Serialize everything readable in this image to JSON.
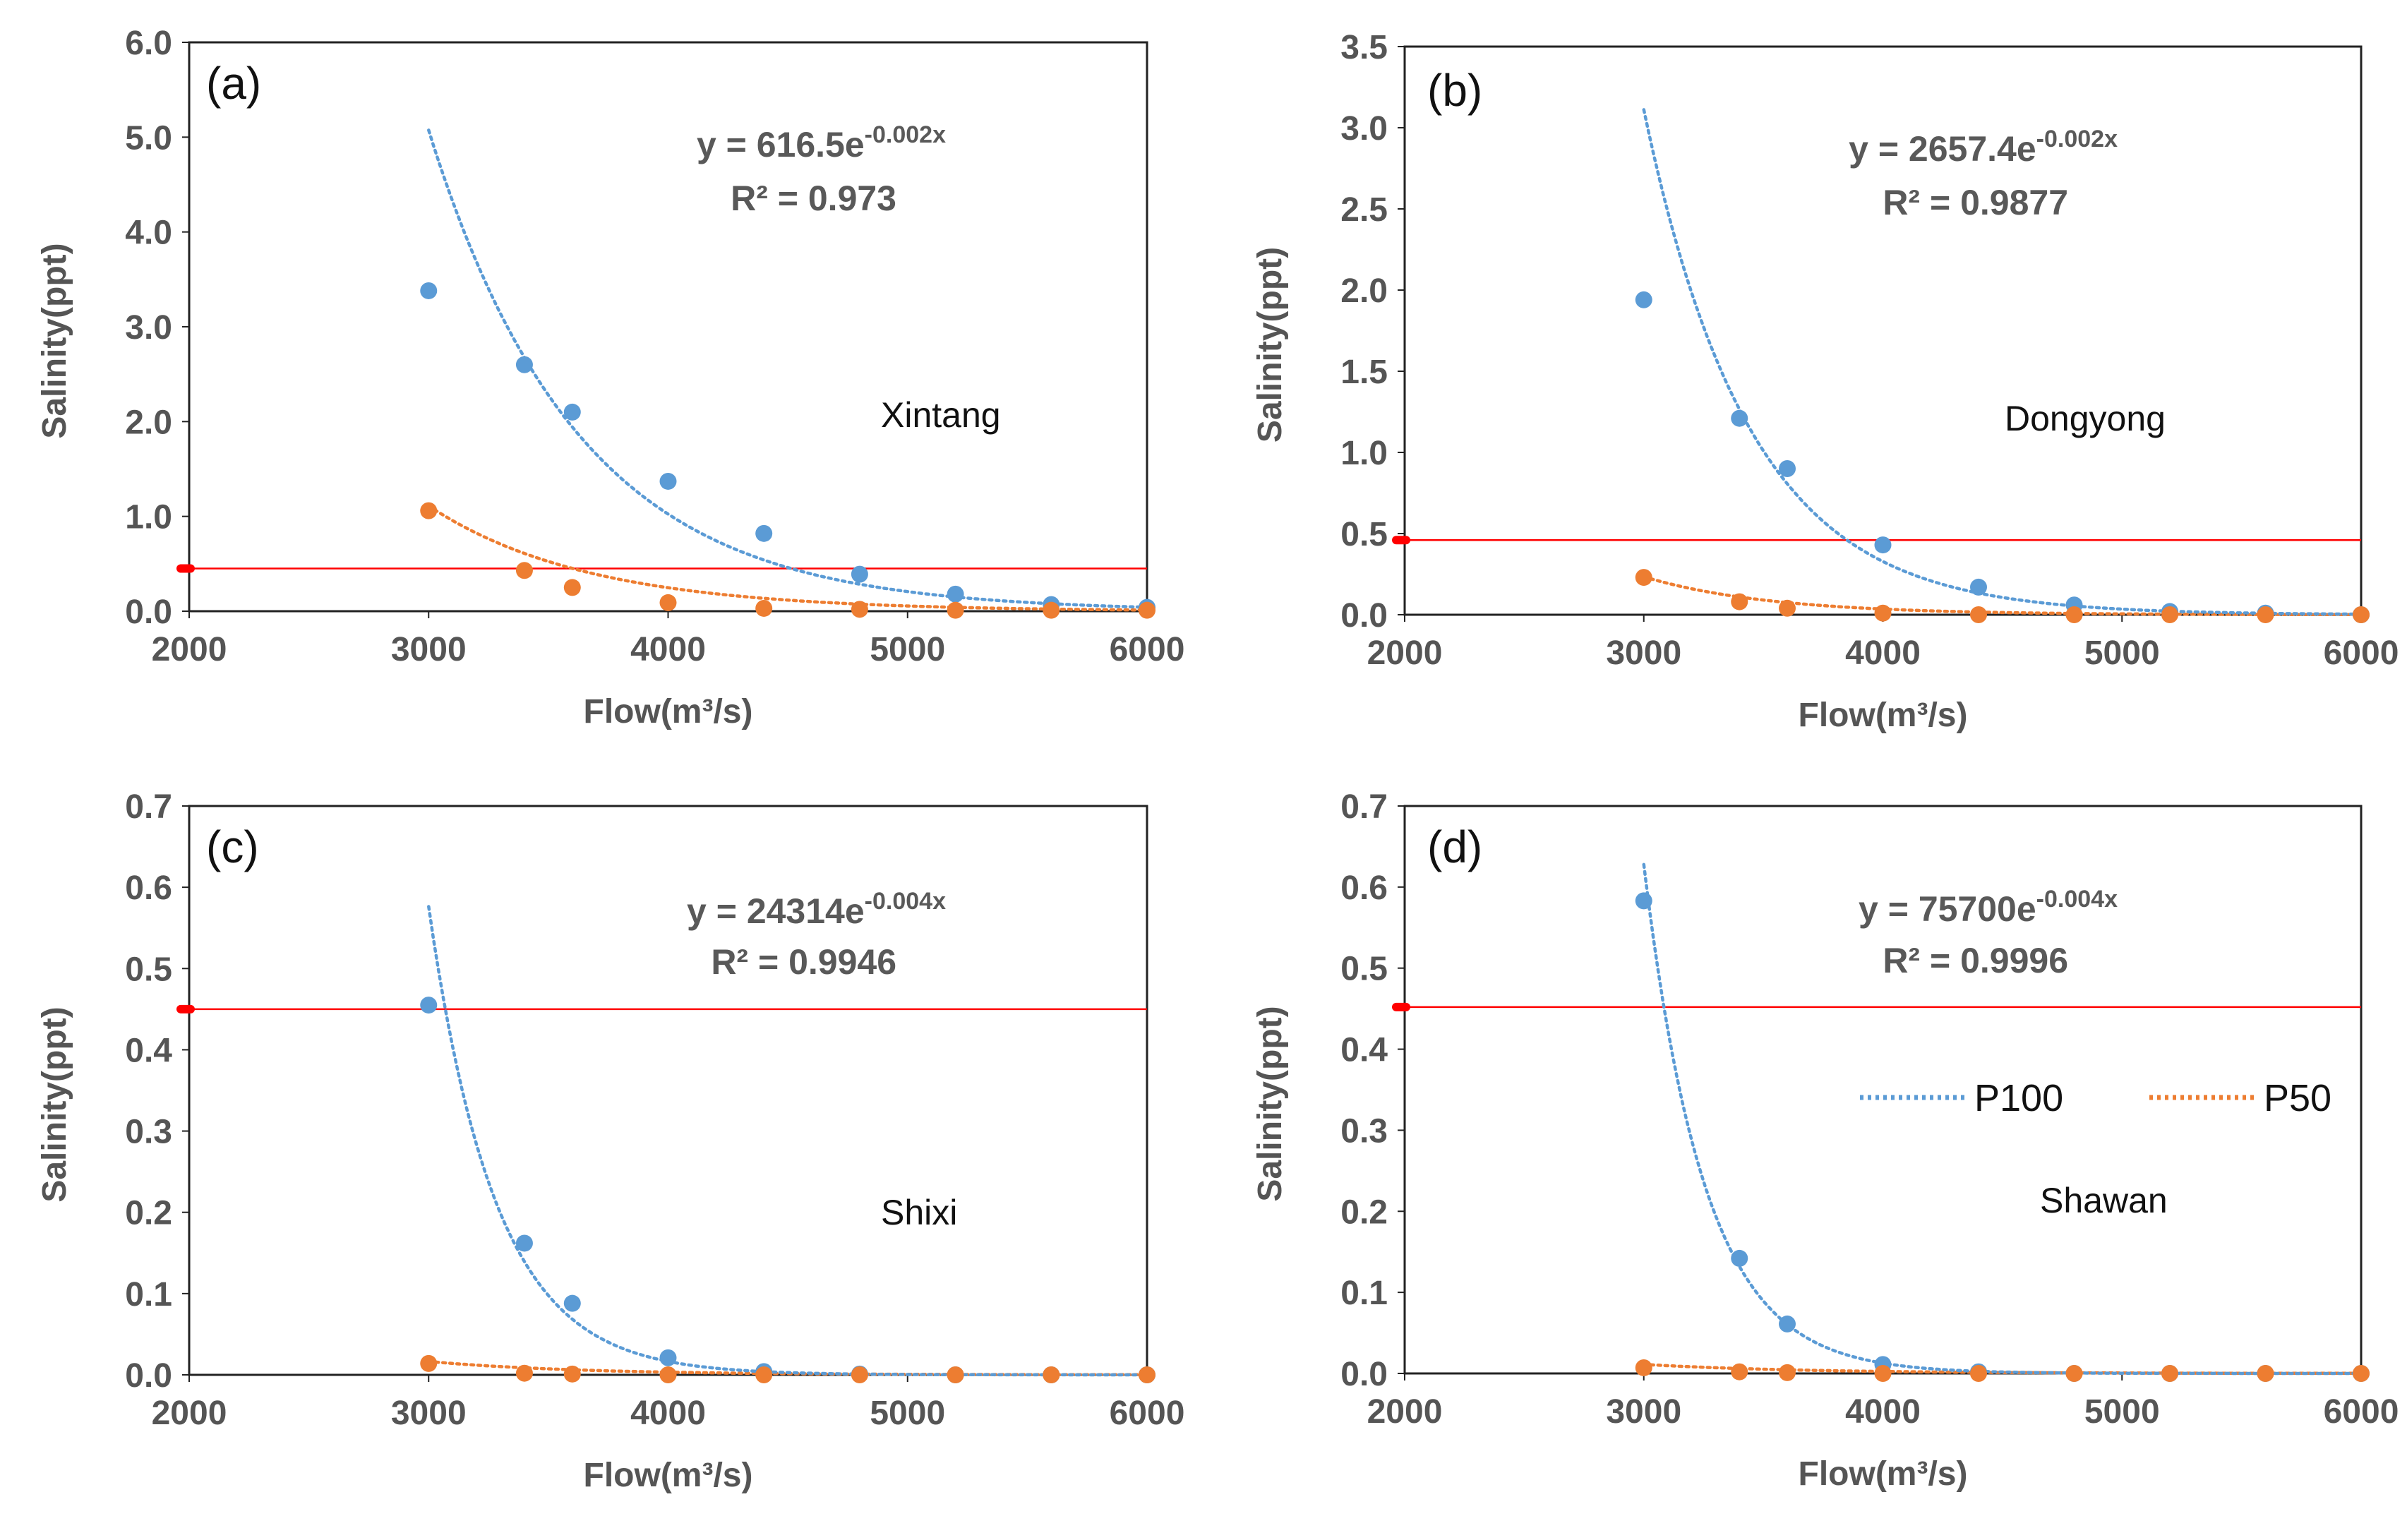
{
  "colors": {
    "p100": "#5B9BD5",
    "p50": "#ED7D31",
    "threshold": "#FF0000",
    "axis": "#222222",
    "text": "#595959"
  },
  "legend": [
    {
      "name": "P100",
      "color": "#5B9BD5"
    },
    {
      "name": "P50",
      "color": "#ED7D31"
    }
  ],
  "chart_data": [
    {
      "type": "scatter",
      "panel_label": "(a)",
      "station": "Xintang",
      "equation": {
        "prefix": "y = 616.5e",
        "exponent": "-0.002x",
        "r2": "R² = 0.973"
      },
      "xlabel": "Flow(m³/s)",
      "ylabel": "Salinity(ppt)",
      "xlim": [
        2000,
        6000
      ],
      "ylim": [
        0,
        6
      ],
      "xticks": [
        "2000",
        "3000",
        "4000",
        "5000",
        "6000"
      ],
      "yticks": [
        "0.0",
        "1.0",
        "2.0",
        "3.0",
        "4.0",
        "5.0",
        "6.0"
      ],
      "threshold": 0.45,
      "trendline": {
        "series": "P100",
        "a": 616.5,
        "b": -0.0016,
        "x_from": 3000,
        "x_to": 6000
      },
      "p50_trendline": {
        "a": 100,
        "b": -0.0015,
        "x_from": 3000,
        "x_to": 6000
      },
      "x": [
        3000,
        3400,
        3600,
        4000,
        4400,
        4800,
        5200,
        5600,
        6000
      ],
      "series": [
        {
          "name": "P100",
          "values": [
            3.38,
            2.6,
            2.1,
            1.37,
            0.82,
            0.39,
            0.18,
            0.07,
            0.04
          ]
        },
        {
          "name": "P50",
          "values": [
            1.06,
            0.43,
            0.25,
            0.09,
            0.03,
            0.02,
            0.01,
            0.01,
            0.01
          ]
        }
      ]
    },
    {
      "type": "scatter",
      "panel_label": "(b)",
      "station": "Dongyong",
      "equation": {
        "prefix": "y = 2657.4e",
        "exponent": "-0.002x",
        "r2": "R² = 0.9877"
      },
      "xlabel": "Flow(m³/s)",
      "ylabel": "Salinity(ppt)",
      "xlim": [
        2000,
        6000
      ],
      "ylim": [
        0,
        3.5
      ],
      "xticks": [
        "2000",
        "3000",
        "4000",
        "5000",
        "6000"
      ],
      "yticks": [
        "0.0",
        "0.5",
        "1.0",
        "1.5",
        "2.0",
        "2.5",
        "3.0",
        "3.5"
      ],
      "threshold": 0.46,
      "trendline": {
        "series": "P100",
        "a": 2657.4,
        "b": -0.00225,
        "x_from": 3000,
        "x_to": 6000
      },
      "p50_trendline": {
        "a": 70,
        "b": -0.0019,
        "x_from": 3000,
        "x_to": 6000
      },
      "x": [
        3000,
        3400,
        3600,
        4000,
        4400,
        4800,
        5200,
        5600,
        6000
      ],
      "series": [
        {
          "name": "P100",
          "values": [
            1.94,
            1.21,
            0.9,
            0.43,
            0.17,
            0.06,
            0.02,
            0.01,
            0.0
          ]
        },
        {
          "name": "P50",
          "values": [
            0.23,
            0.08,
            0.04,
            0.01,
            0.0,
            0.0,
            0.0,
            0.0,
            0.0
          ]
        }
      ]
    },
    {
      "type": "scatter",
      "panel_label": "(c)",
      "station": "Shixi",
      "equation": {
        "prefix": "y = 24314e",
        "exponent": "-0.004x",
        "r2": "R² = 0.9946"
      },
      "xlabel": "Flow(m³/s)",
      "ylabel": "Salinity(ppt)",
      "xlim": [
        2000,
        6000
      ],
      "ylim": [
        0,
        0.7
      ],
      "xticks": [
        "2000",
        "3000",
        "4000",
        "5000",
        "6000"
      ],
      "yticks": [
        "0.0",
        "0.1",
        "0.2",
        "0.3",
        "0.4",
        "0.5",
        "0.6",
        "0.7"
      ],
      "threshold": 0.45,
      "trendline": {
        "series": "P100",
        "a": 24314,
        "b": -0.00355,
        "x_from": 3000,
        "x_to": 6000
      },
      "p50_trendline": {
        "a": 2,
        "b": -0.0016,
        "x_from": 3000,
        "x_to": 6000
      },
      "x": [
        3000,
        3400,
        3600,
        4000,
        4400,
        4800,
        5200,
        5600,
        6000
      ],
      "series": [
        {
          "name": "P100",
          "values": [
            0.455,
            0.162,
            0.088,
            0.021,
            0.004,
            0.001,
            0.0,
            0.0,
            0.0
          ]
        },
        {
          "name": "P50",
          "values": [
            0.014,
            0.002,
            0.001,
            0.0,
            0.0,
            0.0,
            0.0,
            0.0,
            0.0
          ]
        }
      ]
    },
    {
      "type": "scatter",
      "panel_label": "(d)",
      "station": "Shawan",
      "equation": {
        "prefix": "y = 75700e",
        "exponent": "-0.004x",
        "r2": "R² = 0.9996"
      },
      "xlabel": "Flow(m³/s)",
      "ylabel": "Salinity(ppt)",
      "xlim": [
        2000,
        6000
      ],
      "ylim": [
        0,
        0.7
      ],
      "xticks": [
        "2000",
        "3000",
        "4000",
        "5000",
        "6000"
      ],
      "yticks": [
        "0.0",
        "0.1",
        "0.2",
        "0.3",
        "0.4",
        "0.5",
        "0.6",
        "0.7"
      ],
      "threshold": 0.452,
      "trendline": {
        "series": "P100",
        "a": 75700,
        "b": -0.0039,
        "x_from": 3000,
        "x_to": 6000
      },
      "p50_trendline": {
        "a": 1,
        "b": -0.0015,
        "x_from": 3000,
        "x_to": 6000
      },
      "x": [
        3000,
        3400,
        3600,
        4000,
        4400,
        4800,
        5200,
        5600,
        6000
      ],
      "series": [
        {
          "name": "P100",
          "values": [
            0.583,
            0.142,
            0.061,
            0.011,
            0.002,
            0.0,
            0.0,
            0.0,
            0.0
          ]
        },
        {
          "name": "P50",
          "values": [
            0.007,
            0.002,
            0.001,
            0.0,
            0.0,
            0.0,
            0.0,
            0.0,
            0.0
          ]
        }
      ]
    }
  ]
}
